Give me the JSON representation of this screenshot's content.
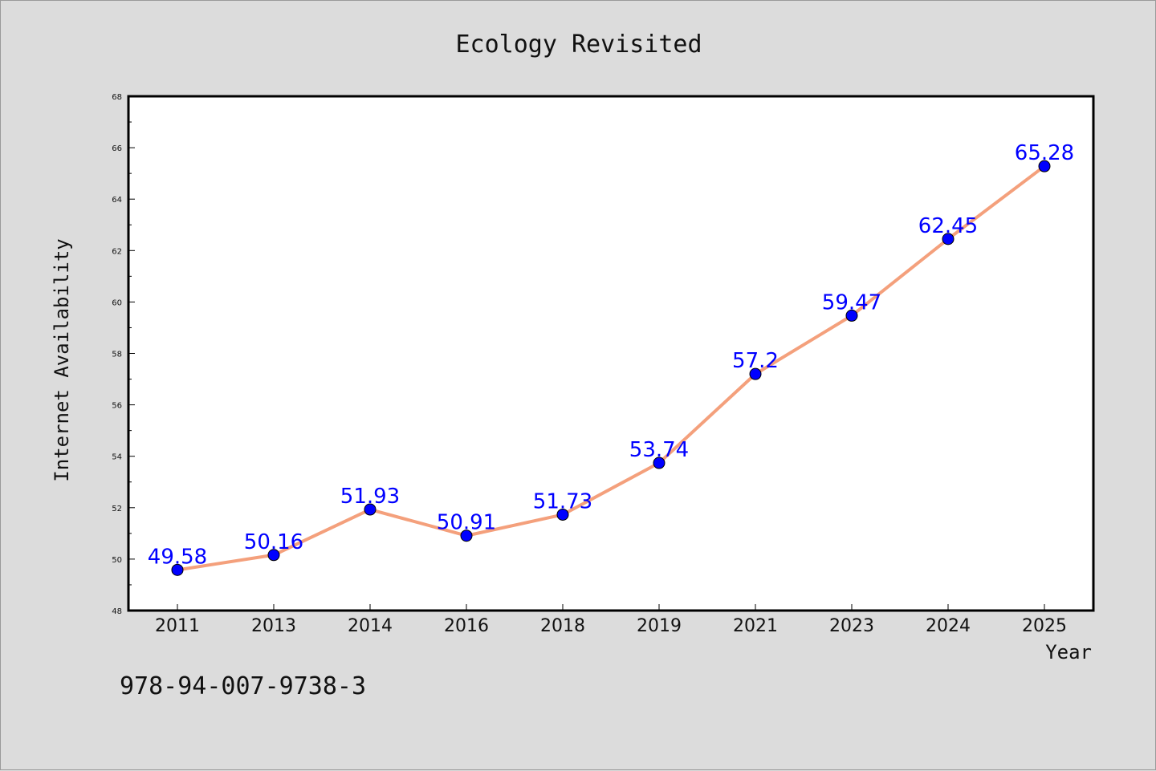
{
  "chart_data": {
    "type": "line",
    "title": "Ecology Revisited",
    "xlabel": "Year",
    "ylabel": "Internet Availability",
    "categories": [
      "2011",
      "2013",
      "2014",
      "2016",
      "2018",
      "2019",
      "2021",
      "2023",
      "2024",
      "2025"
    ],
    "series": [
      {
        "values": [
          49.58,
          50.16,
          51.93,
          50.91,
          51.73,
          53.74,
          57.2,
          59.47,
          62.45,
          65.28
        ],
        "labels": [
          "49.58",
          "50.16",
          "51.93",
          "50.91",
          "51.73",
          "53.74",
          "57.2",
          "59.47",
          "62.45",
          "65.28"
        ],
        "line_color": "#f4a07c",
        "marker_color": "#0000ff"
      }
    ],
    "ylim": [
      48,
      68
    ],
    "yticks": [
      "48",
      "50",
      "52",
      "54",
      "56",
      "58",
      "60",
      "62",
      "64",
      "66",
      "68"
    ],
    "grid": false,
    "legend": "none"
  },
  "footer_text": "978-94-007-9738-3",
  "colors": {
    "background": "#dcdcdc",
    "plot_background": "#ffffff",
    "data_label": "#0000ff"
  }
}
